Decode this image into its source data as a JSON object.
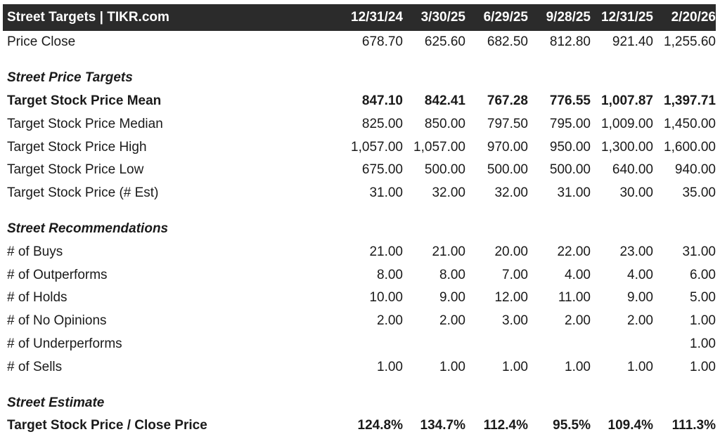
{
  "header": {
    "title": "Street Targets | TIKR.com",
    "dates": [
      "12/31/24",
      "3/30/25",
      "6/29/25",
      "9/28/25",
      "12/31/25",
      "2/20/26"
    ]
  },
  "price_close": {
    "label": "Price Close",
    "values": [
      "678.70",
      "625.60",
      "682.50",
      "812.80",
      "921.40",
      "1,255.60"
    ]
  },
  "price_targets": {
    "title": "Street Price Targets",
    "rows": [
      {
        "label": "Target Stock Price Mean",
        "values": [
          "847.10",
          "842.41",
          "767.28",
          "776.55",
          "1,007.87",
          "1,397.71"
        ]
      },
      {
        "label": "Target Stock Price Median",
        "values": [
          "825.00",
          "850.00",
          "797.50",
          "795.00",
          "1,009.00",
          "1,450.00"
        ]
      },
      {
        "label": "Target Stock Price High",
        "values": [
          "1,057.00",
          "1,057.00",
          "970.00",
          "950.00",
          "1,300.00",
          "1,600.00"
        ]
      },
      {
        "label": "Target Stock Price Low",
        "values": [
          "675.00",
          "500.00",
          "500.00",
          "500.00",
          "640.00",
          "940.00"
        ]
      },
      {
        "label": "Target Stock Price (# Est)",
        "values": [
          "31.00",
          "32.00",
          "32.00",
          "31.00",
          "30.00",
          "35.00"
        ]
      }
    ]
  },
  "recommendations": {
    "title": "Street Recommendations",
    "rows": [
      {
        "label": "# of Buys",
        "values": [
          "21.00",
          "21.00",
          "20.00",
          "22.00",
          "23.00",
          "31.00"
        ]
      },
      {
        "label": "# of Outperforms",
        "values": [
          "8.00",
          "8.00",
          "7.00",
          "4.00",
          "4.00",
          "6.00"
        ]
      },
      {
        "label": "# of Holds",
        "values": [
          "10.00",
          "9.00",
          "12.00",
          "11.00",
          "9.00",
          "5.00"
        ]
      },
      {
        "label": "# of No Opinions",
        "values": [
          "2.00",
          "2.00",
          "3.00",
          "2.00",
          "2.00",
          "1.00"
        ]
      },
      {
        "label": "# of Underperforms",
        "values": [
          "",
          "",
          "",
          "",
          "",
          "1.00"
        ]
      },
      {
        "label": "# of Sells",
        "values": [
          "1.00",
          "1.00",
          "1.00",
          "1.00",
          "1.00",
          "1.00"
        ]
      }
    ]
  },
  "estimate": {
    "title": "Street Estimate",
    "rows": [
      {
        "label": "Target Stock Price / Close Price",
        "values": [
          "124.8%",
          "134.7%",
          "112.4%",
          "95.5%",
          "109.4%",
          "111.3%"
        ]
      }
    ]
  }
}
